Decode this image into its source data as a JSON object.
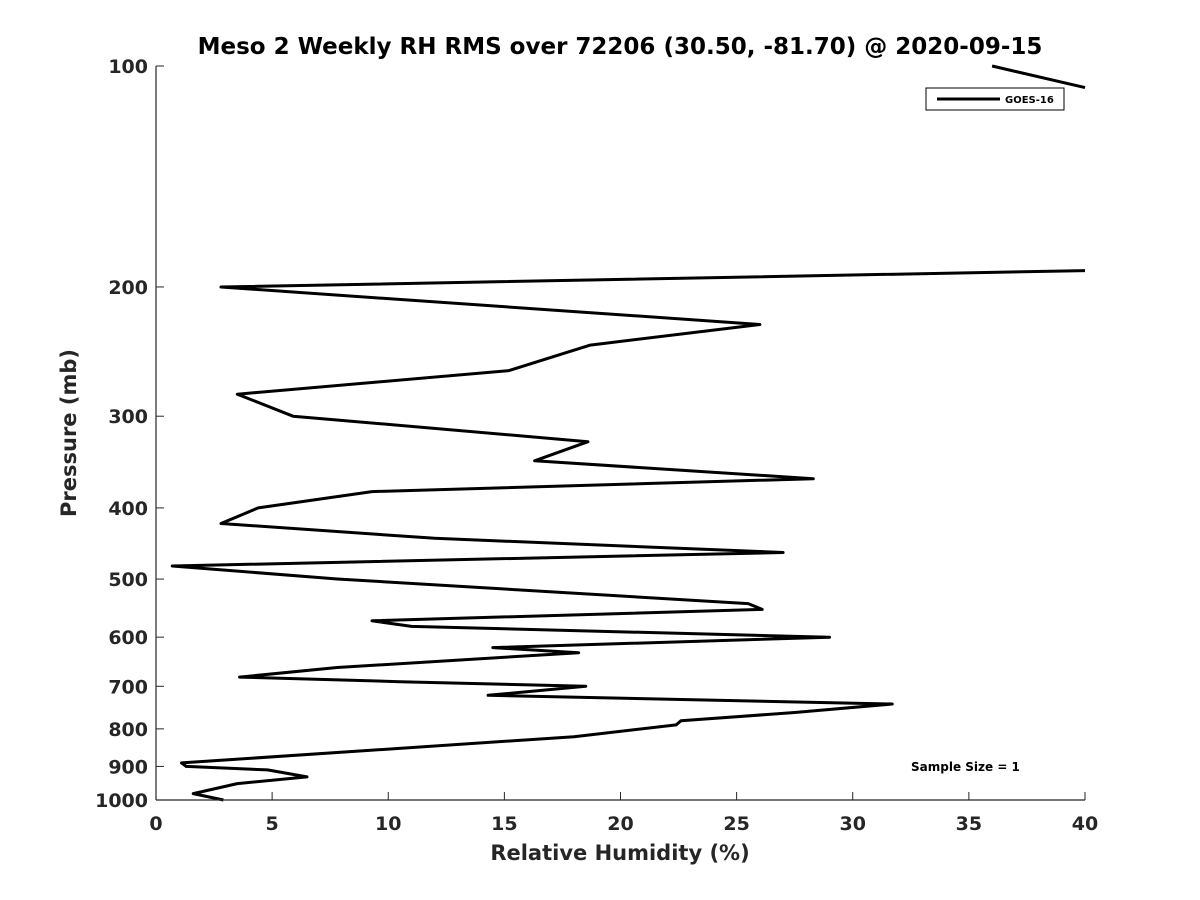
{
  "chart_data": {
    "type": "line",
    "title": "Meso 2 Weekly RH RMS over 72206 (30.50, -81.70) @ 2020-09-15",
    "xlabel": "Relative Humidity (%)",
    "ylabel": "Pressure (mb)",
    "xlim": [
      0,
      40
    ],
    "ylim": [
      100,
      1000
    ],
    "y_scale": "log",
    "y_reversed": true,
    "x_ticks": [
      0,
      5,
      10,
      15,
      20,
      25,
      30,
      35,
      40
    ],
    "x_tick_labels": [
      "0",
      "5",
      "10",
      "15",
      "20",
      "25",
      "30",
      "35",
      "40"
    ],
    "y_ticks": [
      100,
      200,
      300,
      400,
      500,
      600,
      700,
      800,
      900,
      1000
    ],
    "y_tick_labels": [
      "100",
      "200",
      "300",
      "400",
      "500",
      "600",
      "700",
      "800",
      "900",
      "1000"
    ],
    "grid": false,
    "legend_position": "top-right",
    "annotation": "Sample Size = 1",
    "series": [
      {
        "name": "GOES-16",
        "color": "#000000",
        "x": [
          2.9,
          1.6,
          3.5,
          6.5,
          4.8,
          1.3,
          1.1,
          18.0,
          22.4,
          22.6,
          27.5,
          31.7,
          14.3,
          18.5,
          10.5,
          3.6,
          7.8,
          18.2,
          14.5,
          29.0,
          11.0,
          9.3,
          26.1,
          25.5,
          7.8,
          0.7,
          27.0,
          12.0,
          2.8,
          4.4,
          9.3,
          28.3,
          16.3,
          18.6,
          5.9,
          3.5,
          15.2,
          18.7,
          26.0,
          2.8,
          40.0
        ],
        "y": [
          1000,
          980,
          950,
          930,
          910,
          900,
          890,
          820,
          790,
          780,
          760,
          740,
          720,
          700,
          690,
          680,
          660,
          630,
          620,
          600,
          580,
          570,
          550,
          540,
          500,
          480,
          460,
          440,
          420,
          400,
          380,
          365,
          345,
          325,
          300,
          280,
          260,
          240,
          225,
          200,
          190
        ]
      },
      {
        "name": "",
        "color": "#000000",
        "x": [
          36.0,
          40.0
        ],
        "y": [
          100,
          107
        ]
      }
    ]
  }
}
